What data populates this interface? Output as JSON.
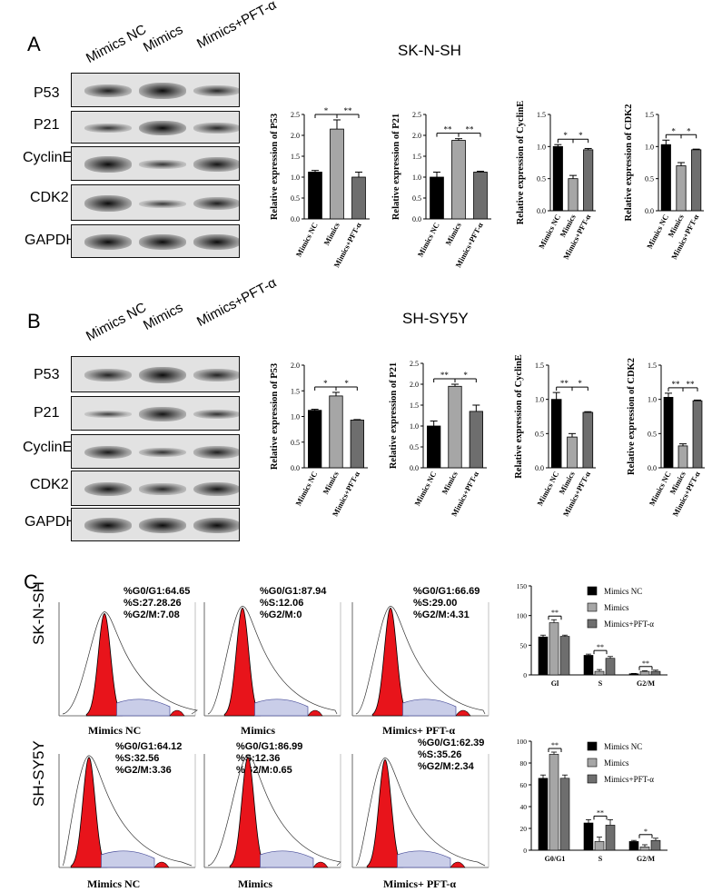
{
  "panelA": {
    "letter": "A",
    "title": "SK-N-SH",
    "lanes": [
      "Mimics NC",
      "Mimics",
      "Mimics+PFT-α"
    ],
    "rows": [
      "P53",
      "P21",
      "CyclinE",
      "CDK2",
      "GAPDH"
    ]
  },
  "panelB": {
    "letter": "B",
    "title": "SH-SY5Y",
    "lanes": [
      "Mimics NC",
      "Mimics",
      "Mimics+PFT-α"
    ],
    "rows": [
      "P53",
      "P21",
      "CyclinE",
      "CDK2",
      "GAPDH"
    ]
  },
  "panelC": {
    "letter": "C",
    "rows": [
      {
        "cell": "SK-N-SH",
        "plots": [
          {
            "label": "Mimics NC",
            "g0g1": "%G0/G1:64.65",
            "s": "%S:27.28.26",
            "g2m": "%G2/M:7.08"
          },
          {
            "label": "Mimics",
            "g0g1": "%G0/G1:87.94",
            "s": "%S:12.06",
            "g2m": "%G2/M:0"
          },
          {
            "label": "Mimics+ PFT-α",
            "g0g1": "%G0/G1:66.69",
            "s": "%S:29.00",
            "g2m": "%G2/M:4.31"
          }
        ]
      },
      {
        "cell": "SH-SY5Y",
        "plots": [
          {
            "label": "Mimics NC",
            "g0g1": "%G0/G1:64.12",
            "s": "%S:32.56",
            "g2m": "%G2/M:3.36"
          },
          {
            "label": "Mimics",
            "g0g1": "%G0/G1:86.99",
            "s": "%S:12.36",
            "g2m": "%G2/M:0.65"
          },
          {
            "label": "Mimics+ PFT-α",
            "g0g1": "%G0/G1:62.39",
            "s": "%S:35.26",
            "g2m": "%G2/M:2.34"
          }
        ]
      }
    ]
  },
  "chart_data": [
    {
      "type": "bar",
      "panel": "A",
      "title": "",
      "ylabel": "Relative expression of P53",
      "categories": [
        "Mimics NC",
        "Mimics",
        "Mimics+PFT-α"
      ],
      "values": [
        1.12,
        2.15,
        1.0
      ],
      "errors": [
        0.04,
        0.22,
        0.12
      ],
      "ylim": [
        0,
        2.5
      ],
      "yticks": [
        "0.0",
        "0.5",
        "1.0",
        "1.5",
        "2.0",
        "2.5"
      ],
      "sig": [
        {
          "from": 0,
          "to": 1,
          "label": "*"
        },
        {
          "from": 1,
          "to": 2,
          "label": "**"
        }
      ],
      "colors": [
        "#000000",
        "#a6a6a6",
        "#6e6e6e"
      ]
    },
    {
      "type": "bar",
      "panel": "A",
      "title": "",
      "ylabel": "Relative expression of P21",
      "categories": [
        "Mimics NC",
        "Mimics",
        "Mimics+PFT-α"
      ],
      "values": [
        1.0,
        1.88,
        1.12
      ],
      "errors": [
        0.12,
        0.04,
        0.02
      ],
      "ylim": [
        0,
        2.5
      ],
      "yticks": [
        "0.0",
        "0.5",
        "1.0",
        "1.5",
        "2.0",
        "2.5"
      ],
      "sig": [
        {
          "from": 0,
          "to": 1,
          "label": "**"
        },
        {
          "from": 1,
          "to": 2,
          "label": "**"
        }
      ],
      "colors": [
        "#000000",
        "#a6a6a6",
        "#6e6e6e"
      ]
    },
    {
      "type": "bar",
      "panel": "A",
      "title": "",
      "ylabel": "Relative expression of CyclinE",
      "categories": [
        "Mimics NC",
        "Mimics",
        "Mimics+PFT-α"
      ],
      "values": [
        1.0,
        0.5,
        0.95
      ],
      "errors": [
        0.03,
        0.05,
        0.02
      ],
      "ylim": [
        0,
        1.5
      ],
      "yticks": [
        "0.0",
        "0.5",
        "1.0",
        "1.5"
      ],
      "sig": [
        {
          "from": 0,
          "to": 1,
          "label": "*"
        },
        {
          "from": 1,
          "to": 2,
          "label": "*"
        }
      ],
      "colors": [
        "#000000",
        "#a6a6a6",
        "#6e6e6e"
      ]
    },
    {
      "type": "bar",
      "panel": "A",
      "title": "",
      "ylabel": "Relative expression of CDK2",
      "categories": [
        "Mimics NC",
        "Mimics",
        "Mimics+PFT-α"
      ],
      "values": [
        1.03,
        0.7,
        0.95
      ],
      "errors": [
        0.07,
        0.05,
        0.01
      ],
      "ylim": [
        0,
        1.5
      ],
      "yticks": [
        "0.0",
        "0.5",
        "1.0",
        "1.5"
      ],
      "sig": [
        {
          "from": 0,
          "to": 1,
          "label": "*"
        },
        {
          "from": 1,
          "to": 2,
          "label": "*"
        }
      ],
      "colors": [
        "#000000",
        "#a6a6a6",
        "#6e6e6e"
      ]
    },
    {
      "type": "bar",
      "panel": "B",
      "title": "",
      "ylabel": "Relative expression of P53",
      "categories": [
        "Mimics NC",
        "Mimics",
        "Mimics+PFT-α"
      ],
      "values": [
        1.12,
        1.4,
        0.93
      ],
      "errors": [
        0.02,
        0.07,
        0.01
      ],
      "ylim": [
        0,
        2.0
      ],
      "yticks": [
        "0.0",
        "0.5",
        "1.0",
        "1.5",
        "2.0"
      ],
      "sig": [
        {
          "from": 0,
          "to": 1,
          "label": "*"
        },
        {
          "from": 1,
          "to": 2,
          "label": "*"
        }
      ],
      "colors": [
        "#000000",
        "#a6a6a6",
        "#6e6e6e"
      ]
    },
    {
      "type": "bar",
      "panel": "B",
      "title": "",
      "ylabel": "Relative expression of P21",
      "categories": [
        "Mimics NC",
        "Mimics",
        "Mimics+PFT-α"
      ],
      "values": [
        1.0,
        1.95,
        1.35
      ],
      "errors": [
        0.12,
        0.05,
        0.15
      ],
      "ylim": [
        0,
        2.5
      ],
      "yticks": [
        "0.0",
        "0.5",
        "1.0",
        "1.5",
        "2.0",
        "2.5"
      ],
      "sig": [
        {
          "from": 0,
          "to": 1,
          "label": "**"
        },
        {
          "from": 1,
          "to": 2,
          "label": "*"
        }
      ],
      "colors": [
        "#000000",
        "#a6a6a6",
        "#6e6e6e"
      ]
    },
    {
      "type": "bar",
      "panel": "B",
      "title": "",
      "ylabel": "Relative expression of CyclinE",
      "categories": [
        "Mimics NC",
        "Mimics",
        "Mimics+PFT-α"
      ],
      "values": [
        1.0,
        0.45,
        0.81
      ],
      "errors": [
        0.1,
        0.05,
        0.01
      ],
      "ylim": [
        0,
        1.5
      ],
      "yticks": [
        "0.0",
        "0.5",
        "1.0",
        "1.5"
      ],
      "sig": [
        {
          "from": 0,
          "to": 1,
          "label": "**"
        },
        {
          "from": 1,
          "to": 2,
          "label": "*"
        }
      ],
      "colors": [
        "#000000",
        "#a6a6a6",
        "#6e6e6e"
      ]
    },
    {
      "type": "bar",
      "panel": "B",
      "title": "",
      "ylabel": "Relative expression of CDK2",
      "categories": [
        "Mimics NC",
        "Mimics",
        "Mimics+PFT-α"
      ],
      "values": [
        1.03,
        0.32,
        0.98
      ],
      "errors": [
        0.06,
        0.03,
        0.01
      ],
      "ylim": [
        0,
        1.5
      ],
      "yticks": [
        "0.0",
        "0.5",
        "1.0",
        "1.5"
      ],
      "sig": [
        {
          "from": 0,
          "to": 1,
          "label": "**"
        },
        {
          "from": 1,
          "to": 2,
          "label": "**"
        }
      ],
      "colors": [
        "#000000",
        "#a6a6a6",
        "#6e6e6e"
      ]
    },
    {
      "type": "bar",
      "panel": "C",
      "cell": "SK-N-SH",
      "title": "",
      "categories": [
        "Gl",
        "S",
        "G2/M"
      ],
      "series": [
        {
          "name": "Mimics NC",
          "values": [
            64,
            33,
            2
          ],
          "errors": [
            3,
            2,
            0.5
          ]
        },
        {
          "name": "Mimics",
          "values": [
            88,
            6,
            6
          ],
          "errors": [
            5,
            3,
            1
          ]
        },
        {
          "name": "Mimics+PFT-α",
          "values": [
            65,
            28,
            6
          ],
          "errors": [
            2,
            3,
            2
          ]
        }
      ],
      "ylim": [
        0,
        150
      ],
      "yticks": [
        "0",
        "50",
        "100",
        "150"
      ],
      "legend": "top-right",
      "sig": [
        {
          "cat": 0,
          "label": "**"
        },
        {
          "cat": 1,
          "label": "**"
        },
        {
          "cat": 2,
          "label": "**"
        }
      ],
      "colors": [
        "#000000",
        "#a6a6a6",
        "#6e6e6e"
      ]
    },
    {
      "type": "bar",
      "panel": "C",
      "cell": "SH-SY5Y",
      "title": "",
      "categories": [
        "G0/G1",
        "S",
        "G2/M"
      ],
      "series": [
        {
          "name": "Mimics NC",
          "values": [
            66,
            25,
            8
          ],
          "errors": [
            3,
            3,
            1
          ]
        },
        {
          "name": "Mimics",
          "values": [
            88,
            8,
            3
          ],
          "errors": [
            2,
            4,
            2
          ]
        },
        {
          "name": "Mimics+PFT-α",
          "values": [
            66,
            23,
            9
          ],
          "errors": [
            3,
            5,
            2
          ]
        }
      ],
      "ylim": [
        0,
        100
      ],
      "yticks": [
        "0",
        "20",
        "40",
        "60",
        "80",
        "100"
      ],
      "legend": "top-right",
      "sig": [
        {
          "cat": 0,
          "label": "**"
        },
        {
          "cat": 1,
          "label": "**"
        },
        {
          "cat": 2,
          "label": "*"
        }
      ],
      "colors": [
        "#000000",
        "#a6a6a6",
        "#6e6e6e"
      ]
    }
  ]
}
